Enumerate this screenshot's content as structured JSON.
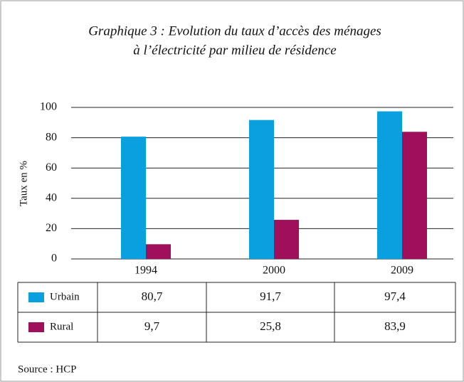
{
  "chart_data": {
    "type": "bar",
    "title": [
      "Graphique 3 : Evolution du taux d’accès des ménages",
      "à l’électricité par milieu de résidence"
    ],
    "y_label": "Taux en %",
    "categories": [
      "1994",
      "2000",
      "2009"
    ],
    "series": [
      {
        "name": "Urbain",
        "color": "#0aa0e0",
        "values": [
          80.7,
          91.7,
          97.4
        ],
        "value_labels": [
          "80,7",
          "91,7",
          "97,4"
        ]
      },
      {
        "name": "Rural",
        "color": "#a0105a",
        "values": [
          9.7,
          25.8,
          83.9
        ],
        "value_labels": [
          "9,7",
          "25,8",
          "83,9"
        ]
      }
    ],
    "ylim": [
      0,
      100
    ],
    "yticks": [
      0,
      20,
      40,
      60,
      80,
      100
    ],
    "grid": true,
    "source": "Source : HCP"
  }
}
